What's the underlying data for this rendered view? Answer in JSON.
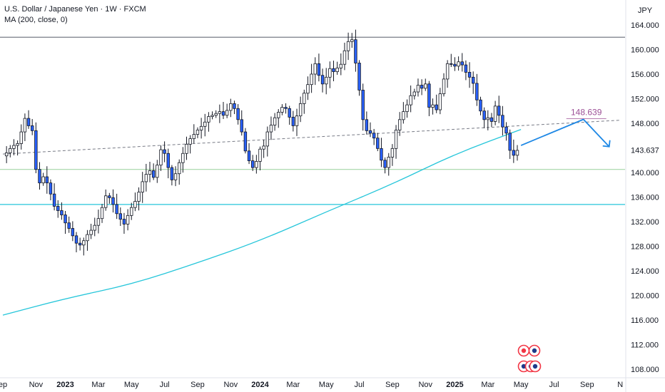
{
  "legend": {
    "symbol": "U.S. Dollar / Japanese Yen · 1W · FXCM",
    "indicator": "MA (200, close, 0)"
  },
  "currency_label": "JPY",
  "chart_data": {
    "type": "candlestick",
    "ylim": [
      106.8,
      166.0
    ],
    "y_ticks": [
      "164.000",
      "160.000",
      "156.000",
      "152.000",
      "148.000",
      "140.000",
      "136.000",
      "132.000",
      "128.000",
      "124.000",
      "120.000",
      "116.000",
      "112.000",
      "108.000"
    ],
    "y_tick_values": [
      164,
      160,
      156,
      152,
      148,
      140,
      136,
      132,
      128,
      124,
      120,
      116,
      112,
      108
    ],
    "price_badge": {
      "text": "143.637",
      "value": 143.637
    },
    "x_labels": [
      {
        "text": "ep",
        "week": 0,
        "bold": false
      },
      {
        "text": "Nov",
        "week": 9,
        "bold": false
      },
      {
        "text": "2023",
        "week": 17,
        "bold": true
      },
      {
        "text": "Mar",
        "week": 26,
        "bold": false
      },
      {
        "text": "May",
        "week": 35,
        "bold": false
      },
      {
        "text": "Jul",
        "week": 44,
        "bold": false
      },
      {
        "text": "Sep",
        "week": 53,
        "bold": false
      },
      {
        "text": "Nov",
        "week": 62,
        "bold": false
      },
      {
        "text": "2024",
        "week": 70,
        "bold": true
      },
      {
        "text": "Mar",
        "week": 79,
        "bold": false
      },
      {
        "text": "May",
        "week": 88,
        "bold": false
      },
      {
        "text": "Jul",
        "week": 97,
        "bold": false
      },
      {
        "text": "Sep",
        "week": 106,
        "bold": false
      },
      {
        "text": "Nov",
        "week": 115,
        "bold": false
      },
      {
        "text": "2025",
        "week": 123,
        "bold": true
      },
      {
        "text": "Mar",
        "week": 132,
        "bold": false
      },
      {
        "text": "May",
        "week": 141,
        "bold": false
      },
      {
        "text": "Jul",
        "week": 150,
        "bold": false
      },
      {
        "text": "Sep",
        "week": 159,
        "bold": false
      },
      {
        "text": "N",
        "week": 168,
        "bold": false
      }
    ],
    "closes": [
      142.7,
      143.2,
      143.9,
      144.4,
      144.7,
      146.6,
      148.8,
      147.6,
      146.8,
      140.5,
      138.3,
      139.3,
      138.3,
      136.5,
      134.5,
      133.8,
      133.1,
      131.8,
      130.9,
      129.7,
      128.5,
      128.2,
      128.9,
      129.9,
      130.6,
      131.4,
      132.5,
      134.3,
      136.2,
      135.9,
      134.8,
      133.3,
      132.4,
      131.6,
      133.0,
      134.3,
      135.3,
      136.8,
      138.5,
      139.7,
      140.3,
      139.2,
      141.2,
      143.7,
      143.1,
      140.8,
      138.8,
      139.8,
      141.6,
      143.1,
      144.6,
      145.5,
      146.2,
      146.9,
      147.5,
      148.2,
      149.1,
      149.3,
      149.6,
      149.9,
      149.3,
      150.1,
      151.2,
      150.4,
      148.6,
      146.6,
      143.5,
      141.9,
      140.8,
      141.8,
      143.8,
      144.3,
      146.6,
      147.7,
      148.9,
      149.8,
      150.6,
      150.4,
      149.0,
      147.6,
      149.2,
      151.2,
      152.9,
      154.3,
      156.0,
      157.7,
      155.8,
      154.4,
      155.5,
      156.9,
      156.4,
      157.0,
      157.6,
      159.8,
      161.3,
      161.6,
      157.8,
      153.4,
      148.6,
      146.8,
      146.4,
      145.6,
      143.9,
      142.0,
      140.8,
      142.5,
      143.9,
      146.9,
      148.6,
      149.9,
      151.0,
      152.5,
      153.1,
      154.2,
      153.7,
      154.4,
      150.6,
      151.0,
      150.2,
      152.8,
      155.2,
      157.7,
      157.6,
      157.3,
      158.0,
      157.5,
      156.3,
      155.5,
      154.5,
      151.8,
      150.0,
      148.6,
      148.9,
      148.3,
      150.8,
      149.3,
      147.4,
      146.4,
      143.6,
      142.8,
      143.6
    ],
    "closes_start_week": 0,
    "ma200": {
      "name": "MA (200, close, 0)",
      "weeks": [
        0,
        17,
        35,
        53,
        70,
        88,
        106,
        123,
        141
      ],
      "values": [
        116.8,
        119.5,
        121.8,
        125.3,
        128.9,
        133.6,
        138.1,
        143.0,
        147.0
      ]
    },
    "horizontal_lines": [
      {
        "role": "resistance",
        "value": 162.0,
        "color": "#787b86"
      },
      {
        "role": "support",
        "value": 140.5,
        "color": "#a5d6a7"
      },
      {
        "role": "support-cyan",
        "value": 134.8,
        "color": "#26c6da"
      }
    ],
    "trendline": {
      "from": {
        "week": 0,
        "value": 143.0
      },
      "to": {
        "week": 168,
        "value": 148.5
      },
      "color": "#787b86",
      "dashed": true
    },
    "projection": {
      "points": [
        {
          "week": 141,
          "value": 144.4
        },
        {
          "week": 158,
          "value": 148.639
        },
        {
          "week": 165,
          "value": 144.2
        }
      ],
      "label": "148.639",
      "label_value": 148.639,
      "color": "#1e88e5",
      "label_color": "#9c4f96"
    },
    "colors": {
      "up": "#ffffff",
      "down": "#2962ff",
      "wick": "#131722",
      "ma": "#26c6da",
      "marker": "#f23645"
    }
  }
}
